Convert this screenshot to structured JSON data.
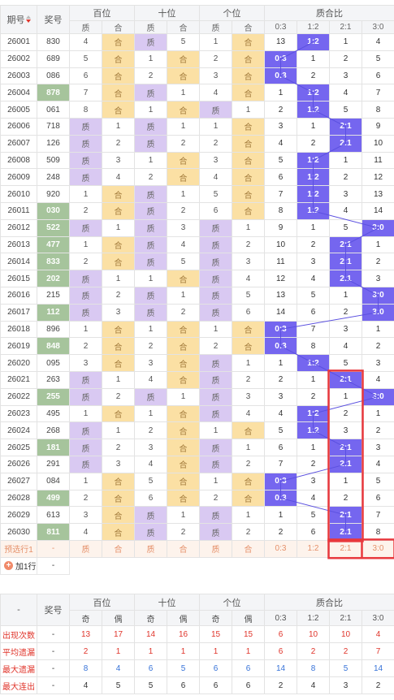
{
  "header": {
    "period": "期号",
    "number": "奖号",
    "groups": [
      "百位",
      "十位",
      "个位",
      "质合比"
    ],
    "sub": [
      "质",
      "合",
      "质",
      "合",
      "质",
      "合",
      "0:3",
      "1:2",
      "2:1",
      "3:0"
    ]
  },
  "rows": [
    {
      "p": "26001",
      "n": "830",
      "hl": false,
      "c": [
        "4",
        "合",
        "质",
        "5",
        "1",
        "合"
      ],
      "r": [
        "13",
        "1:2",
        "1",
        "4"
      ],
      "hit": 1
    },
    {
      "p": "26002",
      "n": "689",
      "hl": false,
      "c": [
        "5",
        "合",
        "1",
        "合",
        "2",
        "合"
      ],
      "r": [
        "0:3",
        "1",
        "2",
        "5"
      ],
      "hit": 0
    },
    {
      "p": "26003",
      "n": "086",
      "hl": false,
      "c": [
        "6",
        "合",
        "2",
        "合",
        "3",
        "合"
      ],
      "r": [
        "0:3",
        "2",
        "3",
        "6"
      ],
      "hit": 0
    },
    {
      "p": "26004",
      "n": "878",
      "hl": true,
      "c": [
        "7",
        "合",
        "质",
        "1",
        "4",
        "合"
      ],
      "r": [
        "1",
        "1:2",
        "4",
        "7"
      ],
      "hit": 1
    },
    {
      "p": "26005",
      "n": "061",
      "hl": false,
      "c": [
        "8",
        "合",
        "1",
        "合",
        "质",
        "1"
      ],
      "r": [
        "2",
        "1:2",
        "5",
        "8"
      ],
      "hit": 1
    },
    {
      "p": "26006",
      "n": "718",
      "hl": false,
      "c": [
        "质",
        "1",
        "质",
        "1",
        "1",
        "合"
      ],
      "r": [
        "3",
        "1",
        "2:1",
        "9"
      ],
      "hit": 2
    },
    {
      "p": "26007",
      "n": "126",
      "hl": false,
      "c": [
        "质",
        "2",
        "质",
        "2",
        "2",
        "合"
      ],
      "r": [
        "4",
        "2",
        "2:1",
        "10"
      ],
      "hit": 2
    },
    {
      "p": "26008",
      "n": "509",
      "hl": false,
      "c": [
        "质",
        "3",
        "1",
        "合",
        "3",
        "合"
      ],
      "r": [
        "5",
        "1:2",
        "1",
        "11"
      ],
      "hit": 1
    },
    {
      "p": "26009",
      "n": "248",
      "hl": false,
      "c": [
        "质",
        "4",
        "2",
        "合",
        "4",
        "合"
      ],
      "r": [
        "6",
        "1:2",
        "2",
        "12"
      ],
      "hit": 1
    },
    {
      "p": "26010",
      "n": "920",
      "hl": false,
      "c": [
        "1",
        "合",
        "质",
        "1",
        "5",
        "合"
      ],
      "r": [
        "7",
        "1:2",
        "3",
        "13"
      ],
      "hit": 1
    },
    {
      "p": "26011",
      "n": "030",
      "hl": true,
      "c": [
        "2",
        "合",
        "质",
        "2",
        "6",
        "合"
      ],
      "r": [
        "8",
        "1:2",
        "4",
        "14"
      ],
      "hit": 1
    },
    {
      "p": "26012",
      "n": "522",
      "hl": true,
      "c": [
        "质",
        "1",
        "质",
        "3",
        "质",
        "1"
      ],
      "r": [
        "9",
        "1",
        "5",
        "3:0"
      ],
      "hit": 3
    },
    {
      "p": "26013",
      "n": "477",
      "hl": true,
      "c": [
        "1",
        "合",
        "质",
        "4",
        "质",
        "2"
      ],
      "r": [
        "10",
        "2",
        "2:1",
        "1"
      ],
      "hit": 2
    },
    {
      "p": "26014",
      "n": "833",
      "hl": true,
      "c": [
        "2",
        "合",
        "质",
        "5",
        "质",
        "3"
      ],
      "r": [
        "11",
        "3",
        "2:1",
        "2"
      ],
      "hit": 2
    },
    {
      "p": "26015",
      "n": "202",
      "hl": true,
      "c": [
        "质",
        "1",
        "1",
        "合",
        "质",
        "4"
      ],
      "r": [
        "12",
        "4",
        "2:1",
        "3"
      ],
      "hit": 2
    },
    {
      "p": "26016",
      "n": "215",
      "hl": false,
      "c": [
        "质",
        "2",
        "质",
        "1",
        "质",
        "5"
      ],
      "r": [
        "13",
        "5",
        "1",
        "3:0"
      ],
      "hit": 3
    },
    {
      "p": "26017",
      "n": "112",
      "hl": true,
      "c": [
        "质",
        "3",
        "质",
        "2",
        "质",
        "6"
      ],
      "r": [
        "14",
        "6",
        "2",
        "3:0"
      ],
      "hit": 3
    },
    {
      "p": "26018",
      "n": "896",
      "hl": false,
      "c": [
        "1",
        "合",
        "1",
        "合",
        "1",
        "合"
      ],
      "r": [
        "0:3",
        "7",
        "3",
        "1"
      ],
      "hit": 0
    },
    {
      "p": "26019",
      "n": "848",
      "hl": true,
      "c": [
        "2",
        "合",
        "2",
        "合",
        "2",
        "合"
      ],
      "r": [
        "0:3",
        "8",
        "4",
        "2"
      ],
      "hit": 0
    },
    {
      "p": "26020",
      "n": "095",
      "hl": false,
      "c": [
        "3",
        "合",
        "3",
        "合",
        "质",
        "1"
      ],
      "r": [
        "1",
        "1:2",
        "5",
        "3"
      ],
      "hit": 1
    },
    {
      "p": "26021",
      "n": "263",
      "hl": false,
      "c": [
        "质",
        "1",
        "4",
        "合",
        "质",
        "2"
      ],
      "r": [
        "2",
        "1",
        "2:1",
        "4"
      ],
      "hit": 2
    },
    {
      "p": "26022",
      "n": "255",
      "hl": true,
      "c": [
        "质",
        "2",
        "质",
        "1",
        "质",
        "3"
      ],
      "r": [
        "3",
        "2",
        "1",
        "3:0"
      ],
      "hit": 3
    },
    {
      "p": "26023",
      "n": "495",
      "hl": false,
      "c": [
        "1",
        "合",
        "1",
        "合",
        "质",
        "4"
      ],
      "r": [
        "4",
        "1:2",
        "2",
        "1"
      ],
      "hit": 1
    },
    {
      "p": "26024",
      "n": "268",
      "hl": false,
      "c": [
        "质",
        "1",
        "2",
        "合",
        "1",
        "合"
      ],
      "r": [
        "5",
        "1:2",
        "3",
        "2"
      ],
      "hit": 1
    },
    {
      "p": "26025",
      "n": "181",
      "hl": true,
      "c": [
        "质",
        "2",
        "3",
        "合",
        "质",
        "1"
      ],
      "r": [
        "6",
        "1",
        "2:1",
        "3"
      ],
      "hit": 2
    },
    {
      "p": "26026",
      "n": "291",
      "hl": false,
      "c": [
        "质",
        "3",
        "4",
        "合",
        "质",
        "2"
      ],
      "r": [
        "7",
        "2",
        "2:1",
        "4"
      ],
      "hit": 2
    },
    {
      "p": "26027",
      "n": "084",
      "hl": false,
      "c": [
        "1",
        "合",
        "5",
        "合",
        "1",
        "合"
      ],
      "r": [
        "0:3",
        "3",
        "1",
        "5"
      ],
      "hit": 0
    },
    {
      "p": "26028",
      "n": "499",
      "hl": true,
      "c": [
        "2",
        "合",
        "6",
        "合",
        "2",
        "合"
      ],
      "r": [
        "0:3",
        "4",
        "2",
        "6"
      ],
      "hit": 0
    },
    {
      "p": "26029",
      "n": "613",
      "hl": false,
      "c": [
        "3",
        "合",
        "质",
        "1",
        "质",
        "1"
      ],
      "r": [
        "1",
        "5",
        "2:1",
        "7"
      ],
      "hit": 2
    },
    {
      "p": "26030",
      "n": "811",
      "hl": true,
      "c": [
        "4",
        "合",
        "质",
        "2",
        "质",
        "2"
      ],
      "r": [
        "2",
        "6",
        "2:1",
        "8"
      ],
      "hit": 2
    }
  ],
  "preselect": {
    "label": "预选行1",
    "number": "-",
    "cells": [
      "质",
      "合",
      "质",
      "合",
      "质",
      "合",
      "0:3",
      "1:2",
      "2:1",
      "3:0"
    ]
  },
  "add_row": {
    "label": "加1行",
    "value": "-"
  },
  "stats": {
    "dash": "-",
    "number": "奖号",
    "groups": [
      "百位",
      "十位",
      "个位",
      "质合比"
    ],
    "sub": [
      "奇",
      "偶",
      "奇",
      "偶",
      "奇",
      "偶",
      "0:3",
      "1:2",
      "2:1",
      "3:0"
    ],
    "rows": [
      {
        "label": "出现次数",
        "dash": "-",
        "v": [
          "13",
          "17",
          "14",
          "16",
          "15",
          "15",
          "6",
          "10",
          "10",
          "4"
        ]
      },
      {
        "label": "平均遗漏",
        "dash": "-",
        "v": [
          "2",
          "1",
          "1",
          "1",
          "1",
          "1",
          "6",
          "2",
          "2",
          "7"
        ]
      },
      {
        "label": "最大遗漏",
        "dash": "-",
        "v": [
          "8",
          "4",
          "6",
          "5",
          "6",
          "6",
          "14",
          "8",
          "5",
          "14"
        ]
      },
      {
        "label": "最大连出",
        "dash": "-",
        "v": [
          "4",
          "5",
          "5",
          "6",
          "6",
          "6",
          "2",
          "4",
          "3",
          "2"
        ]
      }
    ]
  },
  "colors": {
    "prime_bg": "#d9c9f2",
    "composite_bg": "#fbe0a4",
    "ratio_hit_bg": "#7566ef",
    "number_highlight_bg": "#a6c49c",
    "trend_line": "#5b50e0",
    "selection_box": "#e8383d",
    "stats_label": "#e0352b"
  }
}
